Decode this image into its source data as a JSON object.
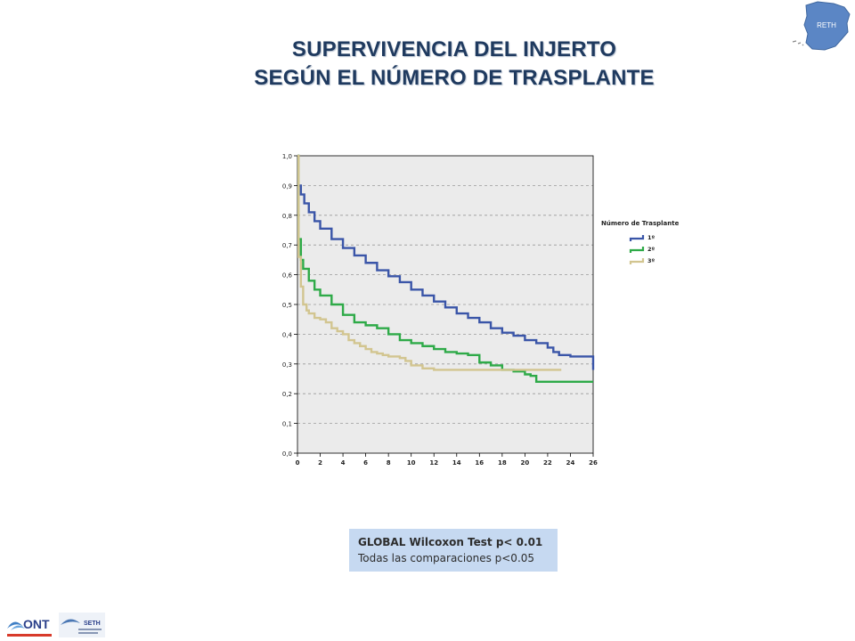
{
  "title": {
    "line1": "SUPERVIVENCIA DEL INJERTO",
    "line2": "SEGÚN EL NÚMERO DE TRASPLANTE"
  },
  "logo_top_right": {
    "label": "RETH",
    "icon": "spain-map-logo"
  },
  "logos_bottom_left": [
    {
      "label": "ONT",
      "icon": "ont-logo"
    },
    {
      "label": "SETH",
      "icon": "seth-logo"
    }
  ],
  "stats_box": {
    "line1": "GLOBAL Wilcoxon Test p< 0.01",
    "line2": "Todas las comparaciones p<0.05"
  },
  "chart_data": {
    "type": "line",
    "title": "",
    "xlabel": "",
    "ylabel": "",
    "xlim": [
      0,
      26
    ],
    "ylim": [
      0,
      1
    ],
    "x_ticks": [
      "0",
      "2",
      "4",
      "6",
      "8",
      "10",
      "12",
      "14",
      "16",
      "18",
      "20",
      "22",
      "24",
      "26"
    ],
    "y_ticks": [
      "0,0",
      "0,1",
      "0,2",
      "0,3",
      "0,4",
      "0,5",
      "0,6",
      "0,7",
      "0,8",
      "0,9",
      "1,0"
    ],
    "grid": "horizontal-dashed",
    "legend_title": "Número de Trasplante",
    "legend_position": "right",
    "series": [
      {
        "name": "1º",
        "color": "#3a55a8",
        "points": [
          [
            0,
            1.0
          ],
          [
            0.1,
            0.9
          ],
          [
            0.3,
            0.87
          ],
          [
            0.6,
            0.84
          ],
          [
            1,
            0.81
          ],
          [
            1.5,
            0.78
          ],
          [
            2,
            0.755
          ],
          [
            3,
            0.72
          ],
          [
            4,
            0.69
          ],
          [
            5,
            0.665
          ],
          [
            6,
            0.64
          ],
          [
            7,
            0.615
          ],
          [
            8,
            0.595
          ],
          [
            9,
            0.575
          ],
          [
            10,
            0.55
          ],
          [
            11,
            0.53
          ],
          [
            12,
            0.51
          ],
          [
            13,
            0.49
          ],
          [
            14,
            0.47
          ],
          [
            15,
            0.455
          ],
          [
            16,
            0.44
          ],
          [
            17,
            0.42
          ],
          [
            18,
            0.405
          ],
          [
            19,
            0.395
          ],
          [
            20,
            0.38
          ],
          [
            21,
            0.37
          ],
          [
            22,
            0.355
          ],
          [
            22.5,
            0.34
          ],
          [
            23,
            0.33
          ],
          [
            24,
            0.325
          ],
          [
            25,
            0.325
          ],
          [
            26,
            0.325
          ],
          [
            26,
            0.28
          ]
        ]
      },
      {
        "name": "2º",
        "color": "#2eaa48",
        "points": [
          [
            0,
            1.0
          ],
          [
            0.1,
            0.72
          ],
          [
            0.3,
            0.65
          ],
          [
            0.5,
            0.62
          ],
          [
            1,
            0.58
          ],
          [
            1.5,
            0.55
          ],
          [
            2,
            0.53
          ],
          [
            3,
            0.5
          ],
          [
            4,
            0.465
          ],
          [
            5,
            0.44
          ],
          [
            6,
            0.43
          ],
          [
            7,
            0.42
          ],
          [
            8,
            0.4
          ],
          [
            9,
            0.38
          ],
          [
            10,
            0.37
          ],
          [
            11,
            0.36
          ],
          [
            12,
            0.35
          ],
          [
            13,
            0.34
          ],
          [
            14,
            0.335
          ],
          [
            15,
            0.33
          ],
          [
            16,
            0.305
          ],
          [
            17,
            0.295
          ],
          [
            18,
            0.28
          ],
          [
            19,
            0.275
          ],
          [
            20,
            0.265
          ],
          [
            20.5,
            0.26
          ],
          [
            21,
            0.24
          ],
          [
            22,
            0.24
          ],
          [
            23,
            0.24
          ],
          [
            24,
            0.24
          ],
          [
            25,
            0.24
          ],
          [
            26,
            0.24
          ]
        ]
      },
      {
        "name": "3º",
        "color": "#d2c590",
        "points": [
          [
            0,
            1.0
          ],
          [
            0.1,
            0.66
          ],
          [
            0.3,
            0.56
          ],
          [
            0.5,
            0.5
          ],
          [
            0.8,
            0.48
          ],
          [
            1,
            0.47
          ],
          [
            1.5,
            0.455
          ],
          [
            2,
            0.45
          ],
          [
            2.5,
            0.44
          ],
          [
            3,
            0.42
          ],
          [
            3.5,
            0.41
          ],
          [
            4,
            0.4
          ],
          [
            4.5,
            0.38
          ],
          [
            5,
            0.37
          ],
          [
            5.5,
            0.36
          ],
          [
            6,
            0.35
          ],
          [
            6.5,
            0.34
          ],
          [
            7,
            0.335
          ],
          [
            7.5,
            0.33
          ],
          [
            8,
            0.325
          ],
          [
            9,
            0.32
          ],
          [
            9.5,
            0.31
          ],
          [
            10,
            0.295
          ],
          [
            11,
            0.285
          ],
          [
            12,
            0.28
          ],
          [
            13,
            0.28
          ],
          [
            14,
            0.28
          ],
          [
            16,
            0.28
          ],
          [
            18,
            0.28
          ],
          [
            20,
            0.28
          ],
          [
            22,
            0.28
          ],
          [
            23.2,
            0.28
          ]
        ]
      }
    ]
  }
}
